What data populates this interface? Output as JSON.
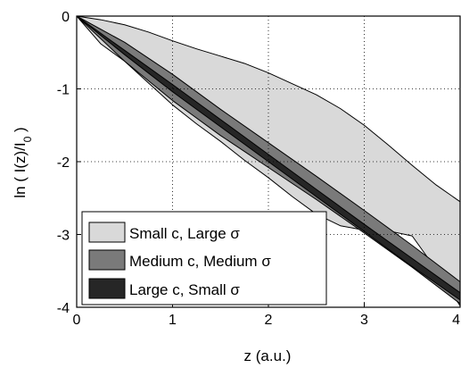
{
  "chart_data": {
    "type": "area",
    "xlabel": "z (a.u.)",
    "ylabel_parts": {
      "pre": "ln ( I(z)/I",
      "sub": "0",
      "post": " )"
    },
    "xlim": [
      0,
      4
    ],
    "ylim": [
      -4,
      0
    ],
    "x_ticks": [
      0,
      1,
      2,
      3,
      4
    ],
    "y_ticks": [
      0,
      -1,
      -2,
      -3,
      -4
    ],
    "x_tick_labels": [
      "0",
      "1",
      "2",
      "3",
      "4"
    ],
    "y_tick_labels": [
      "0",
      "-1",
      "-2",
      "-3",
      "-4"
    ],
    "grid": true,
    "legend_position": "bottom-left",
    "series": [
      {
        "name": "Small c, Large σ",
        "color": "#d9d9d9",
        "x": [
          0,
          0.25,
          0.5,
          0.75,
          1.0,
          1.25,
          1.5,
          1.75,
          2.0,
          2.25,
          2.5,
          2.75,
          3.0,
          3.25,
          3.5,
          3.75,
          4.0
        ],
        "upper": [
          0,
          -0.05,
          -0.12,
          -0.22,
          -0.34,
          -0.45,
          -0.55,
          -0.65,
          -0.78,
          -0.93,
          -1.08,
          -1.27,
          -1.5,
          -1.77,
          -2.05,
          -2.32,
          -2.55
        ],
        "lower": [
          0,
          -0.38,
          -0.62,
          -0.92,
          -1.22,
          -1.48,
          -1.72,
          -1.98,
          -2.22,
          -2.48,
          -2.72,
          -2.88,
          -2.94,
          -2.95,
          -3.02,
          -3.48,
          -3.98
        ]
      },
      {
        "name": "Medium c, Medium σ",
        "color": "#7a7a7a",
        "x": [
          0,
          0.5,
          1.0,
          1.5,
          2.0,
          2.5,
          3.0,
          3.5,
          4.0
        ],
        "upper": [
          0,
          -0.36,
          -0.8,
          -1.28,
          -1.74,
          -2.2,
          -2.67,
          -3.15,
          -3.65
        ],
        "lower": [
          0,
          -0.62,
          -1.16,
          -1.64,
          -2.08,
          -2.52,
          -2.98,
          -3.45,
          -3.95
        ]
      },
      {
        "name": "Large c, Small σ",
        "color": "#262626",
        "x": [
          0,
          0.5,
          1.0,
          1.5,
          2.0,
          2.5,
          3.0,
          3.5,
          4.0
        ],
        "upper": [
          0,
          -0.47,
          -0.94,
          -1.42,
          -1.9,
          -2.38,
          -2.86,
          -3.33,
          -3.8
        ],
        "lower": [
          0,
          -0.53,
          -1.04,
          -1.52,
          -2.0,
          -2.48,
          -2.96,
          -3.44,
          -3.9
        ]
      }
    ]
  }
}
